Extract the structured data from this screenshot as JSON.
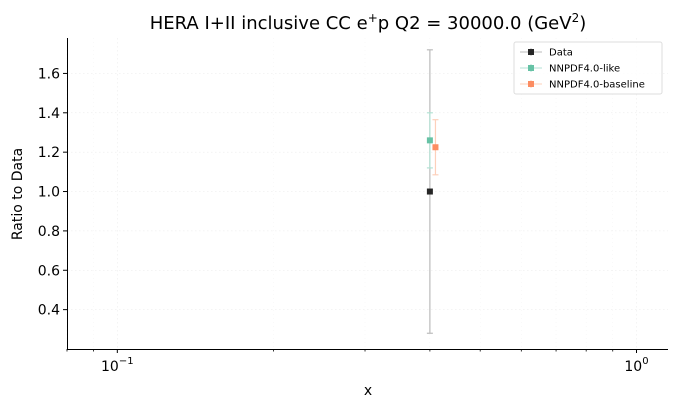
{
  "chart_data": {
    "type": "scatter",
    "title": "HERA I+II inclusive CC e",
    "title_sup": "+",
    "title_rest": "p Q2 = 30000.0 (GeV",
    "title_sup2": "2",
    "title_end": ")",
    "xlabel": "x",
    "ylabel": "Ratio to Data",
    "xscale": "log",
    "xlim": [
      0.08,
      1.15
    ],
    "ylim": [
      0.2,
      1.78
    ],
    "xticks": [
      {
        "value": 0.1,
        "base": "10",
        "exp": "−1"
      },
      {
        "value": 1.0,
        "base": "10",
        "exp": "0"
      }
    ],
    "yticks": [
      {
        "value": 0.4,
        "label": "0.4"
      },
      {
        "value": 0.6,
        "label": "0.6"
      },
      {
        "value": 0.8,
        "label": "0.8"
      },
      {
        "value": 1.0,
        "label": "1.0"
      },
      {
        "value": 1.2,
        "label": "1.2"
      },
      {
        "value": 1.4,
        "label": "1.4"
      },
      {
        "value": 1.6,
        "label": "1.6"
      }
    ],
    "grid": true,
    "legend_position": "top-right",
    "series": [
      {
        "name": "Data",
        "color": "#262626",
        "x": [
          0.4
        ],
        "y": [
          1.0
        ],
        "err": [
          0.72
        ]
      },
      {
        "name": "NNPDF4.0-like",
        "color": "#66c2a5",
        "x": [
          0.4
        ],
        "y": [
          1.26
        ],
        "err": [
          0.14
        ]
      },
      {
        "name": "NNPDF4.0-baseline",
        "color": "#fc8d62",
        "x": [
          0.41
        ],
        "y": [
          1.225
        ],
        "err": [
          0.14
        ]
      }
    ]
  }
}
